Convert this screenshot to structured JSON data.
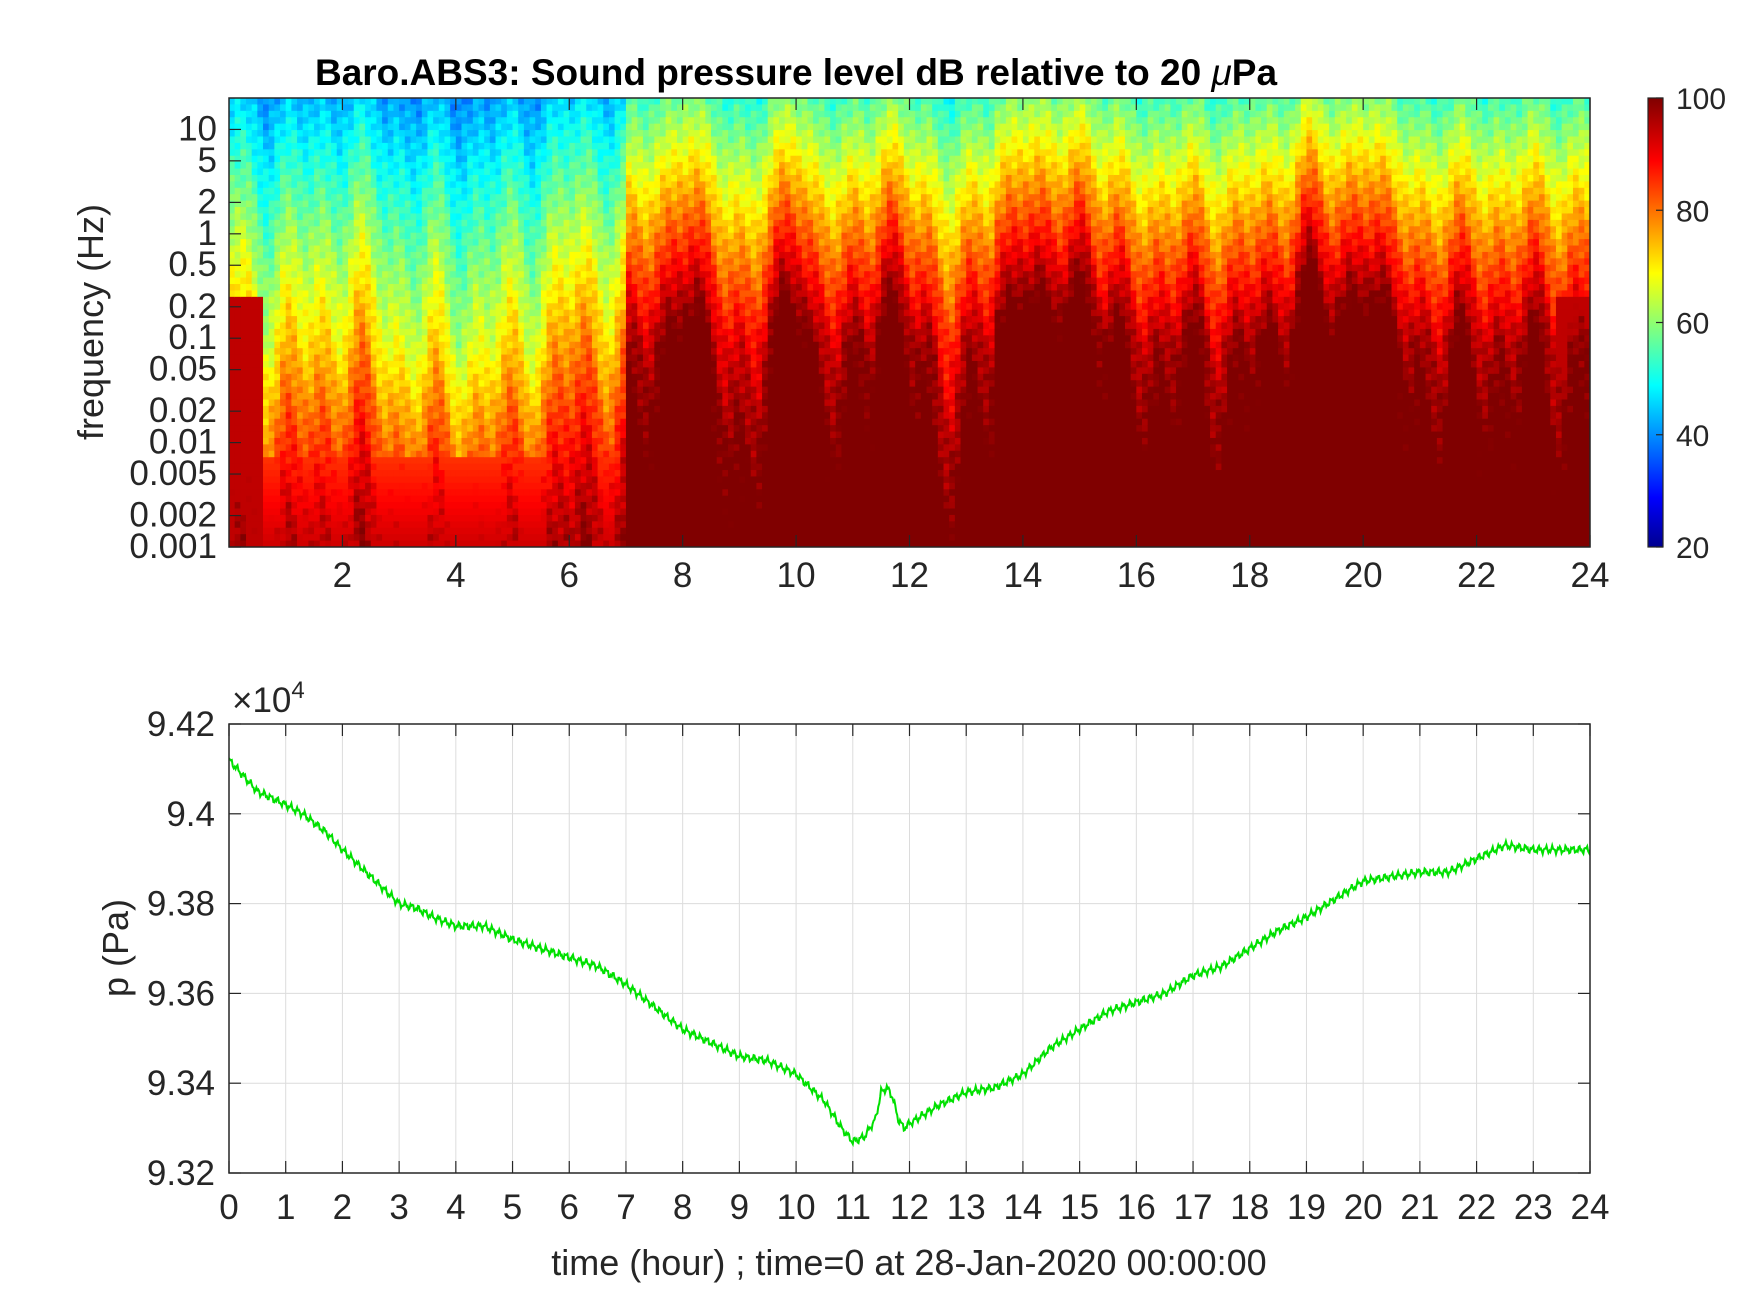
{
  "chart_data": [
    {
      "type": "heatmap",
      "title_main": "Baro.ABS3: Sound pressure level dB relative to 20 ",
      "title_mu": "μ",
      "title_unit": "Pa",
      "ylabel": "frequency (Hz)",
      "xlim": [
        0,
        24
      ],
      "x_ticks": [
        "2",
        "4",
        "6",
        "8",
        "10",
        "12",
        "14",
        "16",
        "18",
        "20",
        "22",
        "24"
      ],
      "y_scale": "log",
      "ylim": [
        0.001,
        20
      ],
      "y_ticks": [
        "10",
        "5",
        "2",
        "1",
        "0.5",
        "0.2",
        "0.1",
        "0.05",
        "0.02",
        "0.01",
        "0.005",
        "0.002",
        "0.001"
      ],
      "colormap": "jet",
      "colorbar": {
        "clim": [
          20,
          100
        ],
        "ticks": [
          "100",
          "80",
          "60",
          "40",
          "20"
        ]
      },
      "high_activity_hours": [
        8,
        10,
        11.6,
        14,
        15,
        19,
        20
      ],
      "calm_hours": [
        1,
        3,
        4,
        5
      ]
    },
    {
      "type": "line",
      "ylabel": "p (Pa)",
      "xlabel": "time (hour) ; time=0 at 28-Jan-2020 00:00:00",
      "y_multiplier_base": "×10",
      "y_multiplier_exp": "4",
      "xlim": [
        0,
        24
      ],
      "ylim": [
        9.32,
        9.42
      ],
      "x_ticks": [
        "0",
        "1",
        "2",
        "3",
        "4",
        "5",
        "6",
        "7",
        "8",
        "9",
        "10",
        "11",
        "12",
        "13",
        "14",
        "15",
        "16",
        "17",
        "18",
        "19",
        "20",
        "21",
        "22",
        "23",
        "24"
      ],
      "y_ticks": [
        "9.42",
        "9.4",
        "9.38",
        "9.36",
        "9.34",
        "9.32"
      ],
      "grid": true,
      "line_color": "#00e000",
      "series": [
        {
          "x": [
            0,
            0.5,
            1,
            1.3,
            1.7,
            2,
            2.5,
            3,
            3.3,
            3.6,
            4,
            4.5,
            5,
            5.5,
            6,
            6.5,
            7,
            7.5,
            8,
            8.5,
            9,
            9.5,
            10,
            10.5,
            10.8,
            11,
            11.2,
            11.4,
            11.5,
            11.6,
            11.7,
            11.8,
            11.9,
            12,
            12.5,
            13,
            13.5,
            14,
            14.5,
            15,
            15.5,
            16,
            16.5,
            17,
            17.5,
            18,
            18.5,
            19,
            19.5,
            20,
            20.5,
            21,
            21.5,
            22,
            22.5,
            23,
            23.5,
            24
          ],
          "y": [
            9.412,
            9.405,
            9.402,
            9.4,
            9.396,
            9.392,
            9.386,
            9.38,
            9.379,
            9.377,
            9.375,
            9.375,
            9.372,
            9.37,
            9.368,
            9.366,
            9.362,
            9.357,
            9.352,
            9.349,
            9.346,
            9.345,
            9.342,
            9.336,
            9.33,
            9.327,
            9.328,
            9.332,
            9.338,
            9.339,
            9.337,
            9.332,
            9.33,
            9.331,
            9.335,
            9.338,
            9.339,
            9.342,
            9.348,
            9.352,
            9.356,
            9.358,
            9.36,
            9.364,
            9.366,
            9.37,
            9.374,
            9.377,
            9.381,
            9.385,
            9.386,
            9.387,
            9.387,
            9.39,
            9.393,
            9.392,
            9.392,
            9.392
          ]
        }
      ]
    }
  ]
}
